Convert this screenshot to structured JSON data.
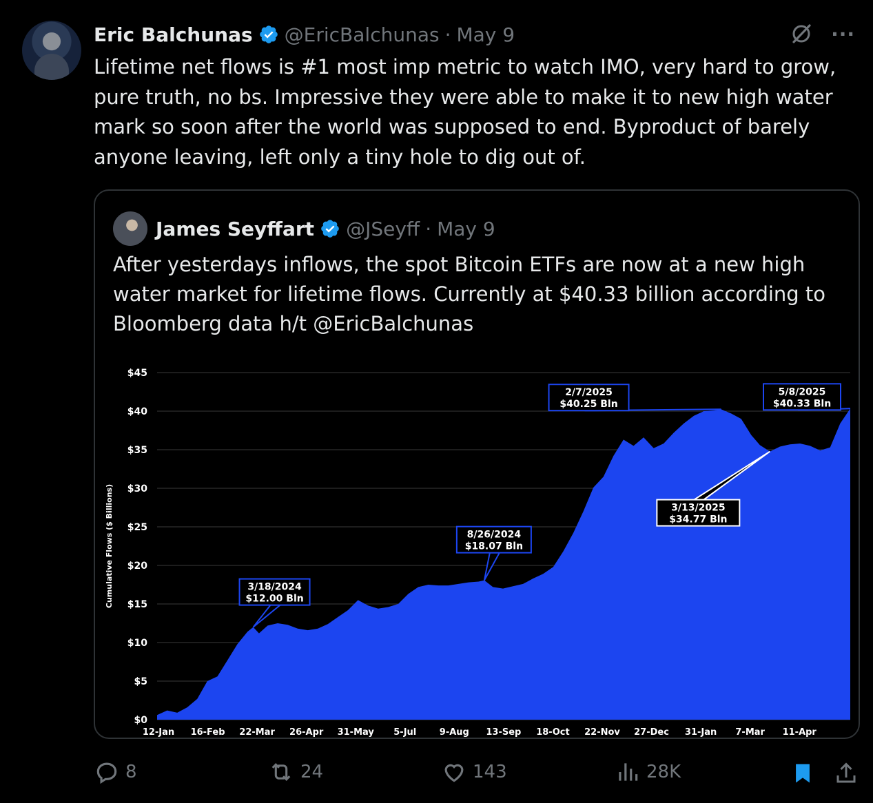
{
  "tweet": {
    "author_name": "Eric Balchunas",
    "handle": "@EricBalchunas",
    "separator": "·",
    "date": "May 9",
    "text": "Lifetime net flows is #1 most imp metric to watch IMO, very hard to grow, pure truth, no bs. Impressive they were able to make it to new high water mark so soon after the world was supposed to end. Byproduct of barely anyone leaving, left only a tiny hole to dig out of."
  },
  "top_icons": {
    "grok_icon": "grok-icon",
    "more_label": "···"
  },
  "quote": {
    "author_name": "James Seyffart",
    "handle": "@JSeyff",
    "separator": "·",
    "date": "May 9",
    "text": "After yesterdays inflows, the spot Bitcoin ETFs are now at a new high water market for lifetime flows. Currently at $40.33 billion according to Bloomberg data h/t @EricBalchunas"
  },
  "actions": {
    "replies": "8",
    "reposts": "24",
    "likes": "143",
    "views": "28K"
  },
  "colors": {
    "accent": "#1d9bf0",
    "area": "#1c45f0",
    "muted": "#71767b",
    "border": "#2f3336"
  },
  "chart_data": {
    "type": "area",
    "ylabel": "Cumulative Flows ($ Billions)",
    "ylim": [
      0,
      45
    ],
    "y_ticks": [
      "$0",
      "$5",
      "$10",
      "$15",
      "$20",
      "$25",
      "$30",
      "$35",
      "$40",
      "$45"
    ],
    "x_ticks": [
      "12-Jan",
      "16-Feb",
      "22-Mar",
      "26-Apr",
      "31-May",
      "5-Jul",
      "9-Aug",
      "13-Sep",
      "18-Oct",
      "22-Nov",
      "27-Dec",
      "31-Jan",
      "7-Mar",
      "11-Apr"
    ],
    "x_range": [
      "2024-01-11",
      "2025-05-08"
    ],
    "grid": true,
    "series": [
      {
        "x": [
          "2024-01-11",
          "2024-01-18",
          "2024-01-25",
          "2024-02-01",
          "2024-02-08",
          "2024-02-15",
          "2024-02-22",
          "2024-02-29",
          "2024-03-07",
          "2024-03-14",
          "2024-03-18",
          "2024-03-22",
          "2024-03-28",
          "2024-04-04",
          "2024-04-11",
          "2024-04-18",
          "2024-04-25",
          "2024-05-02",
          "2024-05-09",
          "2024-05-16",
          "2024-05-23",
          "2024-05-30",
          "2024-06-06",
          "2024-06-13",
          "2024-06-20",
          "2024-06-27",
          "2024-07-04",
          "2024-07-11",
          "2024-07-18",
          "2024-07-25",
          "2024-08-01",
          "2024-08-08",
          "2024-08-15",
          "2024-08-22",
          "2024-08-26",
          "2024-09-01",
          "2024-09-08",
          "2024-09-15",
          "2024-09-22",
          "2024-09-29",
          "2024-10-06",
          "2024-10-13",
          "2024-10-20",
          "2024-10-27",
          "2024-11-03",
          "2024-11-10",
          "2024-11-17",
          "2024-11-24",
          "2024-12-01",
          "2024-12-08",
          "2024-12-15",
          "2024-12-22",
          "2024-12-29",
          "2025-01-05",
          "2025-01-12",
          "2025-01-19",
          "2025-01-26",
          "2025-02-02",
          "2025-02-07",
          "2025-02-14",
          "2025-02-21",
          "2025-02-28",
          "2025-03-06",
          "2025-03-13",
          "2025-03-20",
          "2025-03-27",
          "2025-04-03",
          "2025-04-10",
          "2025-04-17",
          "2025-04-24",
          "2025-05-01",
          "2025-05-08"
        ],
        "y": [
          0.6,
          1.2,
          0.9,
          1.6,
          2.7,
          5.0,
          5.6,
          7.7,
          9.8,
          11.4,
          12.0,
          11.2,
          12.2,
          12.5,
          12.3,
          11.8,
          11.6,
          11.8,
          12.4,
          13.3,
          14.2,
          15.5,
          14.8,
          14.4,
          14.6,
          15.0,
          16.3,
          17.2,
          17.5,
          17.4,
          17.4,
          17.6,
          17.8,
          17.9,
          18.07,
          17.2,
          17.0,
          17.3,
          17.6,
          18.3,
          18.9,
          19.8,
          21.8,
          24.2,
          27.0,
          30.1,
          31.5,
          34.2,
          36.3,
          35.5,
          36.6,
          35.2,
          35.8,
          37.2,
          38.4,
          39.4,
          40.0,
          40.1,
          40.25,
          39.7,
          39.0,
          36.9,
          35.6,
          34.77,
          35.4,
          35.7,
          35.8,
          35.5,
          34.9,
          35.3,
          38.4,
          40.33
        ]
      }
    ],
    "annotations": [
      {
        "date": "3/18/2024",
        "value": "$12.00 Bln",
        "x": "2024-03-18",
        "y": 12.0
      },
      {
        "date": "8/26/2024",
        "value": "$18.07 Bln",
        "x": "2024-08-26",
        "y": 18.07
      },
      {
        "date": "2/7/2025",
        "value": "$40.25 Bln",
        "x": "2025-02-07",
        "y": 40.25
      },
      {
        "date": "3/13/2025",
        "value": "$34.77 Bln",
        "x": "2025-03-13",
        "y": 34.77
      },
      {
        "date": "5/8/2025",
        "value": "$40.33 Bln",
        "x": "2025-05-08",
        "y": 40.33
      }
    ]
  }
}
